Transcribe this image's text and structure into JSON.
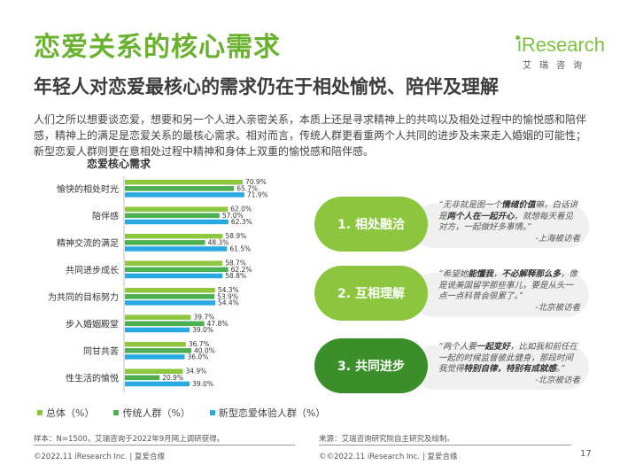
{
  "title": "恋爱关系的核心需求",
  "subtitle": "年轻人对恋爱最核心的需求仍在于相处愉悦、陪伴及理解",
  "logo": {
    "word": "iResearch",
    "sub": "艾瑞咨询"
  },
  "intro": "人们之所以想要谈恋爱，想要和另一个人进入亲密关系，本质上还是寻求精神上的共鸣以及相处过程中的愉悦感和陪伴感，精神上的满足是恋爱关系的最核心需求。相对而言，传统人群更看重两个人共同的进步及未来走入婚姻的可能性；新型恋爱人群则更在意相处过程中精神和身体上双重的愉悦感和陪伴感。",
  "colors": {
    "accent_green": "#6ab12f",
    "pill_light": "#8cc63f",
    "pill_dark": "#3a8f2a",
    "total": "#8dc63f",
    "traditional": "#4caf50",
    "new": "#29a9e1"
  },
  "chart_data": {
    "type": "bar",
    "orientation": "horizontal",
    "title": "恋爱核心需求",
    "categories": [
      "愉快的相处时光",
      "陪伴感",
      "精神交流的满足",
      "共同进步成长",
      "为共同的目标努力",
      "步入婚姻殿堂",
      "同甘共苦",
      "性生活的愉悦"
    ],
    "series": [
      {
        "name": "总体（%）",
        "values": [
          70.9,
          62.0,
          58.9,
          58.7,
          54.3,
          39.7,
          36.7,
          34.9
        ],
        "color": "#8dc63f"
      },
      {
        "name": "传统人群（%）",
        "values": [
          65.7,
          57.0,
          48.3,
          62.2,
          53.9,
          47.8,
          40.0,
          20.9
        ],
        "color": "#4caf50"
      },
      {
        "name": "新型恋爱体验人群（%）",
        "values": [
          71.9,
          62.3,
          61.5,
          58.8,
          54.4,
          39.0,
          36.0,
          39.0
        ],
        "color": "#29a9e1"
      }
    ],
    "value_labels": [
      [
        "70.9%",
        "65.7%",
        "71.9%"
      ],
      [
        "62.0%",
        "57.0%",
        "62.3%"
      ],
      [
        "58.9%",
        "48.3%",
        "61.5%"
      ],
      [
        "58.7%",
        "62.2%",
        "58.8%"
      ],
      [
        "54.3%",
        "53.9%",
        "54.4%"
      ],
      [
        "39.7%",
        "47.8%",
        "39.0%"
      ],
      [
        "36.7%",
        "40.0%",
        "36.0%"
      ],
      [
        "34.9%",
        "20.9%",
        "39.0%"
      ]
    ],
    "xlim": [
      0,
      80
    ],
    "grid": false,
    "legend_position": "bottom"
  },
  "pills": [
    {
      "label": "1. 相处融洽",
      "quote_pre": "“无非就是图一个",
      "quote_bold1": "情绪价值",
      "quote_mid": "嘛，白话讲是",
      "quote_bold2": "两个人在一起开心",
      "quote_post": "，就想每天看见对方，一起做好多事情。”",
      "attribution": "-上海被访者",
      "color": "#8cc63f"
    },
    {
      "label": "2. 互相理解",
      "quote_pre": "“希望她",
      "quote_bold1": "能懂我",
      "quote_mid": "，",
      "quote_bold2": "不必解释那么多",
      "quote_post": "，像是说美国留学那些事儿，要是从头一点一点科普会很累了。”",
      "attribution": "-北京被访者",
      "color": "#8cc63f"
    },
    {
      "label": "3. 共同进步",
      "quote_pre": "“两个人要",
      "quote_bold1": "一起变好",
      "quote_mid": "，比如我和前任在一起的时候监督彼此健身，那段时间我觉得",
      "quote_bold2": "特别自律，特别有成就感",
      "quote_post": "。”",
      "attribution": "-北京被访者",
      "color": "#3a8f2a"
    }
  ],
  "note": "样本：N=1500，艾瑞咨询于2022年9月网上调研获得。",
  "source": "来源：艾瑞咨询研究院自主研究及绘制。",
  "footer_left": "©2022.11 iResearch Inc. | 复爱合缘",
  "footer_right": "©©2022.11 iResearch Inc. | 复爱合缘",
  "page_number": "17"
}
